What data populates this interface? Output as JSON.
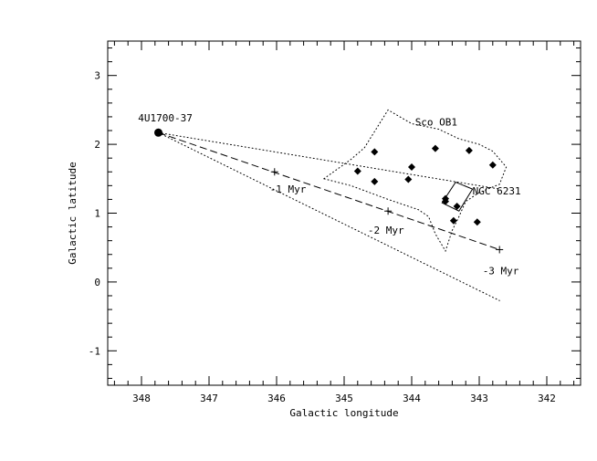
{
  "chart_data": {
    "type": "scatter",
    "xlabel": "Galactic longitude",
    "ylabel": "Galactic latitude",
    "xlim": [
      348.5,
      341.5
    ],
    "ylim": [
      -1.5,
      3.5
    ],
    "x_ticks": [
      "348",
      "347",
      "346",
      "345",
      "344",
      "343",
      "342"
    ],
    "y_ticks": [
      "-1",
      "0",
      "1",
      "2",
      "3"
    ],
    "grid": false,
    "source": {
      "name": "4U1700-37",
      "l": 347.75,
      "b": 2.17
    },
    "trajectory": [
      [
        347.75,
        2.17
      ],
      [
        342.7,
        0.47
      ]
    ],
    "time_markers": [
      {
        "label": "-1 Myr",
        "l": 346.03,
        "b": 1.6
      },
      {
        "label": "-2 Myr",
        "l": 344.35,
        "b": 1.03
      },
      {
        "label": "-3 Myr",
        "l": 342.7,
        "b": 0.47
      }
    ],
    "cone_lines": [
      [
        [
          347.75,
          2.17
        ],
        [
          342.7,
          1.35
        ]
      ],
      [
        [
          347.75,
          2.17
        ],
        [
          342.7,
          -0.27
        ]
      ]
    ],
    "sco_ob1_outline": [
      [
        345.3,
        1.5
      ],
      [
        344.9,
        1.78
      ],
      [
        344.7,
        1.95
      ],
      [
        344.35,
        2.5
      ],
      [
        344.0,
        2.3
      ],
      [
        343.6,
        2.22
      ],
      [
        343.3,
        2.08
      ],
      [
        343.0,
        2.0
      ],
      [
        342.8,
        1.9
      ],
      [
        342.6,
        1.67
      ],
      [
        342.7,
        1.42
      ],
      [
        343.0,
        1.3
      ],
      [
        343.2,
        1.17
      ],
      [
        343.3,
        0.95
      ],
      [
        343.4,
        0.75
      ],
      [
        343.5,
        0.45
      ],
      [
        343.65,
        0.7
      ],
      [
        343.75,
        0.95
      ],
      [
        343.9,
        1.05
      ],
      [
        344.35,
        1.2
      ],
      [
        344.9,
        1.4
      ],
      [
        345.3,
        1.5
      ]
    ],
    "stars": [
      {
        "l": 344.55,
        "b": 1.89
      },
      {
        "l": 343.65,
        "b": 1.94
      },
      {
        "l": 343.15,
        "b": 1.91
      },
      {
        "l": 342.8,
        "b": 1.7
      },
      {
        "l": 344.8,
        "b": 1.61
      },
      {
        "l": 344.0,
        "b": 1.67
      },
      {
        "l": 344.55,
        "b": 1.46
      },
      {
        "l": 344.05,
        "b": 1.49
      },
      {
        "l": 343.5,
        "b": 1.21
      },
      {
        "l": 343.5,
        "b": 1.17
      },
      {
        "l": 343.33,
        "b": 1.1
      },
      {
        "l": 343.38,
        "b": 0.89
      },
      {
        "l": 343.03,
        "b": 0.87
      }
    ],
    "ngc_box": [
      [
        343.55,
        1.15
      ],
      [
        343.35,
        1.45
      ],
      [
        343.1,
        1.35
      ],
      [
        343.3,
        1.03
      ]
    ],
    "annotations": [
      {
        "text": "Sco OB1",
        "l": 343.95,
        "b": 2.27
      },
      {
        "text": "NGC 6231",
        "l": 343.1,
        "b": 1.27
      },
      {
        "text": "4U1700-37",
        "l": 348.05,
        "b": 2.33
      },
      {
        "text": "-1 Myr",
        "l": 346.1,
        "b": 1.3
      },
      {
        "text": "-2 Myr",
        "l": 344.65,
        "b": 0.7
      },
      {
        "text": "-3 Myr",
        "l": 342.95,
        "b": 0.11
      }
    ]
  }
}
